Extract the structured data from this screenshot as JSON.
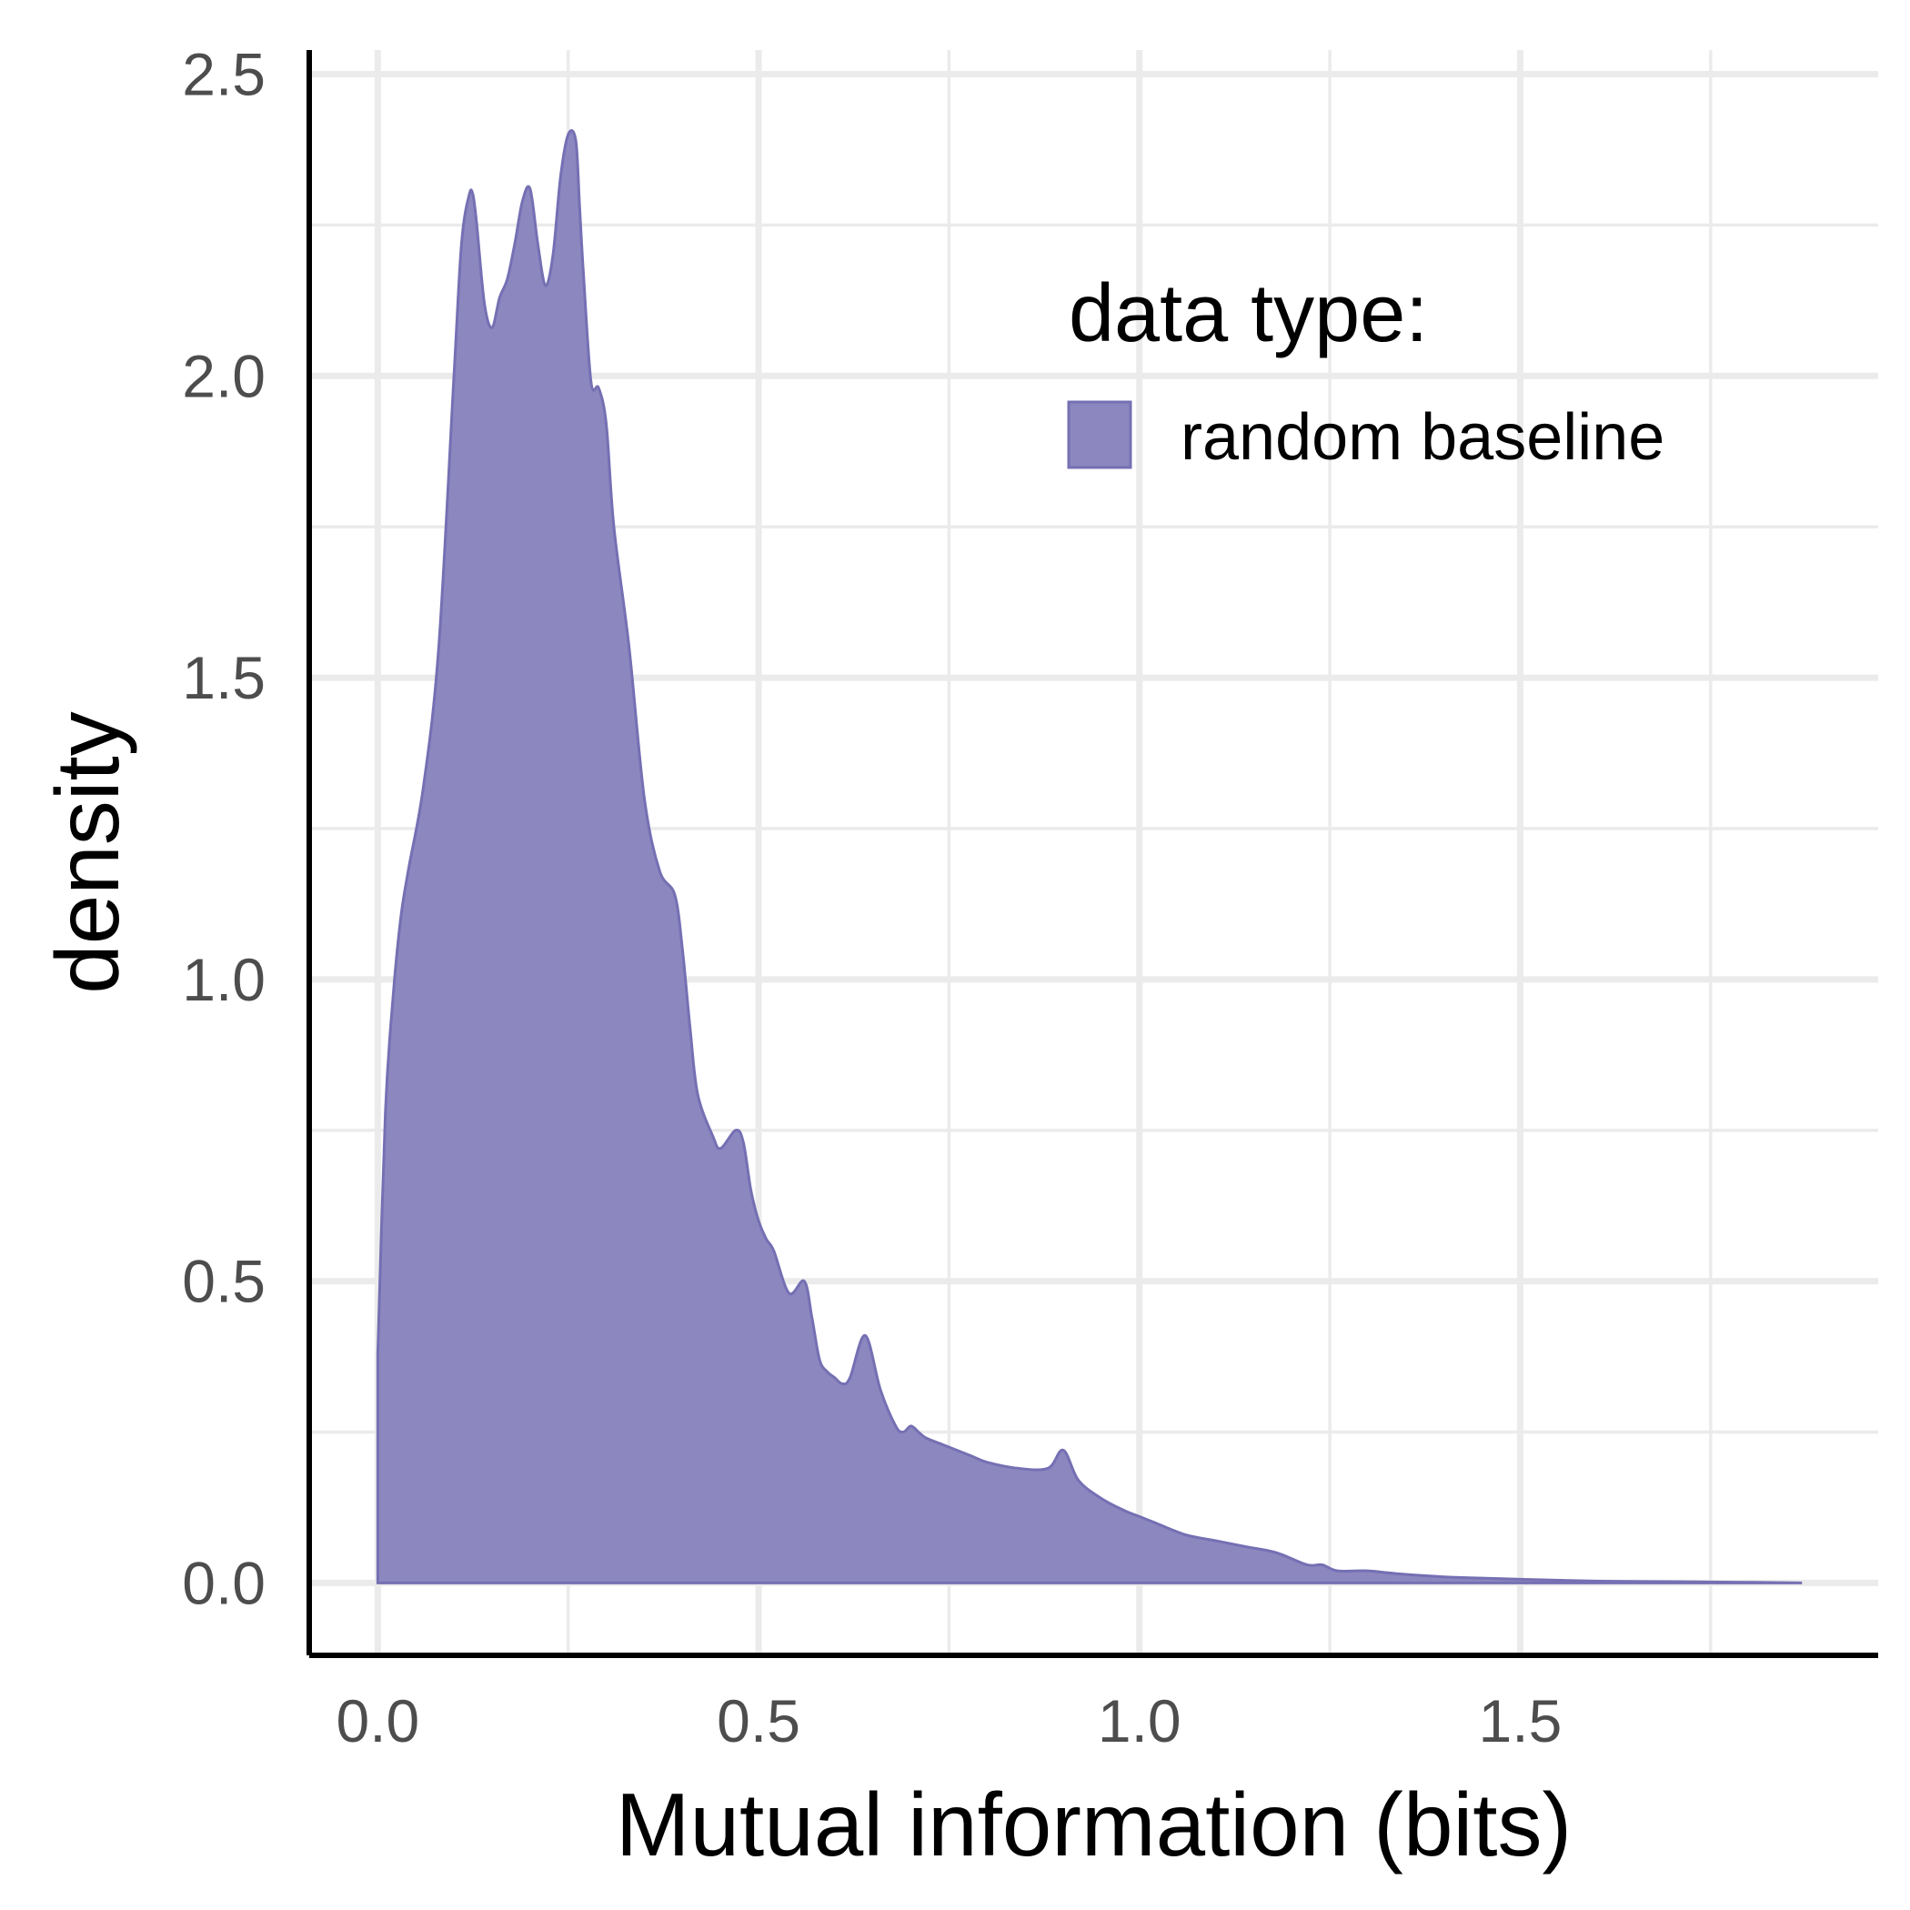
{
  "chart_data": {
    "type": "area",
    "title": "",
    "xlabel": "Mutual information (bits)",
    "ylabel": "density",
    "xlim": [
      -0.09,
      1.97
    ],
    "ylim": [
      -0.12,
      2.54
    ],
    "x_ticks": [
      "0.0",
      "0.5",
      "1.0",
      "1.5"
    ],
    "x_tick_values": [
      0.0,
      0.5,
      1.0,
      1.5
    ],
    "y_ticks": [
      "0.0",
      "0.5",
      "1.0",
      "1.5",
      "2.0",
      "2.5"
    ],
    "y_tick_values": [
      0.0,
      0.5,
      1.0,
      1.5,
      2.0,
      2.5
    ],
    "grid": true,
    "legend": {
      "title": "data type:",
      "placement": "top-right inside",
      "entries": [
        "random baseline"
      ]
    },
    "colors": {
      "fill": "#8c87bf",
      "stroke": "#7570b3"
    },
    "series": [
      {
        "name": "random baseline",
        "x": [
          0.0,
          0.01,
          0.02,
          0.03,
          0.04,
          0.06,
          0.08,
          0.1,
          0.11,
          0.12,
          0.125,
          0.13,
          0.14,
          0.15,
          0.16,
          0.17,
          0.18,
          0.19,
          0.2,
          0.21,
          0.22,
          0.23,
          0.24,
          0.25,
          0.26,
          0.265,
          0.27,
          0.28,
          0.29,
          0.3,
          0.31,
          0.33,
          0.35,
          0.37,
          0.39,
          0.4,
          0.41,
          0.42,
          0.44,
          0.45,
          0.47,
          0.48,
          0.49,
          0.5,
          0.51,
          0.52,
          0.54,
          0.56,
          0.57,
          0.58,
          0.59,
          0.6,
          0.61,
          0.62,
          0.64,
          0.66,
          0.68,
          0.69,
          0.7,
          0.71,
          0.72,
          0.74,
          0.76,
          0.78,
          0.8,
          0.84,
          0.88,
          0.9,
          0.92,
          0.95,
          0.98,
          1.0,
          1.02,
          1.06,
          1.1,
          1.14,
          1.18,
          1.22,
          1.24,
          1.26,
          1.3,
          1.34,
          1.4,
          1.45,
          1.5,
          1.6,
          1.7,
          1.8,
          1.87
        ],
        "y": [
          0.38,
          0.78,
          0.97,
          1.1,
          1.18,
          1.32,
          1.55,
          2.0,
          2.22,
          2.3,
          2.3,
          2.25,
          2.12,
          2.08,
          2.13,
          2.16,
          2.22,
          2.29,
          2.31,
          2.22,
          2.15,
          2.2,
          2.33,
          2.4,
          2.39,
          2.28,
          2.17,
          1.99,
          1.98,
          1.92,
          1.75,
          1.55,
          1.3,
          1.18,
          1.14,
          1.05,
          0.92,
          0.81,
          0.74,
          0.72,
          0.75,
          0.73,
          0.65,
          0.6,
          0.57,
          0.55,
          0.48,
          0.5,
          0.44,
          0.37,
          0.35,
          0.34,
          0.33,
          0.34,
          0.41,
          0.32,
          0.26,
          0.25,
          0.26,
          0.25,
          0.24,
          0.23,
          0.22,
          0.21,
          0.2,
          0.19,
          0.19,
          0.22,
          0.17,
          0.14,
          0.12,
          0.11,
          0.1,
          0.08,
          0.07,
          0.06,
          0.05,
          0.03,
          0.03,
          0.02,
          0.02,
          0.015,
          0.01,
          0.008,
          0.006,
          0.003,
          0.002,
          0.001,
          0.0
        ]
      }
    ]
  }
}
